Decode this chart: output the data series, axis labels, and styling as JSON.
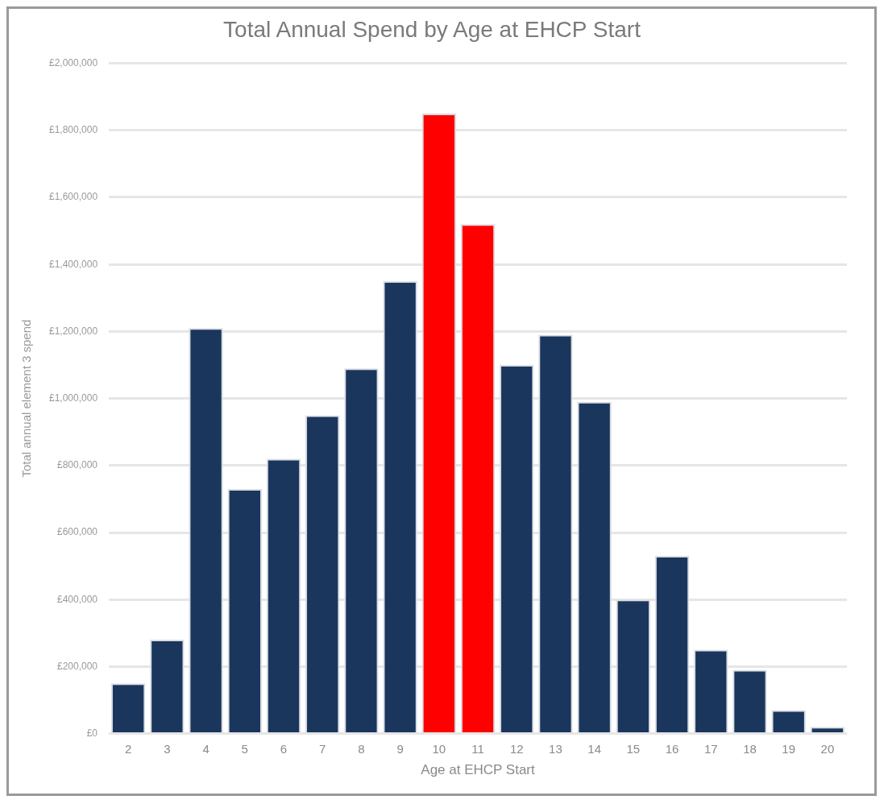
{
  "chart_data": {
    "type": "bar",
    "title": "Total Annual Spend by Age at EHCP Start",
    "xlabel": "Age at EHCP Start",
    "ylabel": "Total annual element 3 spend",
    "categories": [
      "2",
      "3",
      "4",
      "5",
      "6",
      "7",
      "8",
      "9",
      "10",
      "11",
      "12",
      "13",
      "14",
      "15",
      "16",
      "17",
      "18",
      "19",
      "20"
    ],
    "values": [
      150000,
      280000,
      1210000,
      730000,
      820000,
      950000,
      1090000,
      1350000,
      1850000,
      1520000,
      1100000,
      1190000,
      990000,
      400000,
      530000,
      250000,
      190000,
      70000,
      20000
    ],
    "colors": [
      "#1b365d",
      "#1b365d",
      "#1b365d",
      "#1b365d",
      "#1b365d",
      "#1b365d",
      "#1b365d",
      "#1b365d",
      "#ff0000",
      "#ff0000",
      "#1b365d",
      "#1b365d",
      "#1b365d",
      "#1b365d",
      "#1b365d",
      "#1b365d",
      "#1b365d",
      "#1b365d",
      "#1b365d"
    ],
    "ylim": [
      0,
      2000000
    ],
    "yticks": [
      {
        "value": 0,
        "label": "£0"
      },
      {
        "value": 200000,
        "label": "£200,000"
      },
      {
        "value": 400000,
        "label": "£400,000"
      },
      {
        "value": 600000,
        "label": "£600,000"
      },
      {
        "value": 800000,
        "label": "£800,000"
      },
      {
        "value": 1000000,
        "label": "£1,000,000"
      },
      {
        "value": 1200000,
        "label": "£1,200,000"
      },
      {
        "value": 1400000,
        "label": "£1,400,000"
      },
      {
        "value": 1600000,
        "label": "£1,600,000"
      },
      {
        "value": 1800000,
        "label": "£1,800,000"
      },
      {
        "value": 2000000,
        "label": "£2,000,000"
      }
    ],
    "grid": "y",
    "legend": false
  }
}
